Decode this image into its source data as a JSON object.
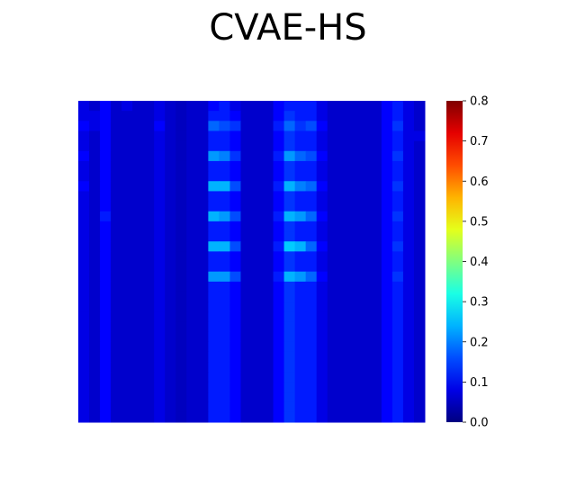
{
  "chart_data": {
    "type": "heatmap",
    "title": "CVAE-HS",
    "xlabel": "",
    "ylabel": "",
    "grid": false,
    "axes_visible": false,
    "colormap": "jet",
    "colorbar": {
      "range": [
        0.0,
        0.8
      ],
      "ticks": [
        0.0,
        0.1,
        0.2,
        0.3,
        0.4,
        0.5,
        0.6,
        0.7,
        0.8
      ],
      "tick_labels": [
        "0.0",
        "0.1",
        "0.2",
        "0.3",
        "0.4",
        "0.5",
        "0.6",
        "0.7",
        "0.8"
      ],
      "placement": "right"
    },
    "grid_size": [
      32,
      32
    ],
    "values": [
      [
        0.08,
        0.06,
        0.1,
        0.06,
        0.08,
        0.06,
        0.06,
        0.08,
        0.06,
        0.05,
        0.06,
        0.06,
        0.1,
        0.12,
        0.08,
        0.06,
        0.06,
        0.06,
        0.1,
        0.12,
        0.12,
        0.12,
        0.08,
        0.06,
        0.06,
        0.06,
        0.06,
        0.06,
        0.1,
        0.12,
        0.08,
        0.06
      ],
      [
        0.08,
        0.08,
        0.1,
        0.06,
        0.06,
        0.06,
        0.06,
        0.08,
        0.06,
        0.05,
        0.06,
        0.06,
        0.12,
        0.12,
        0.1,
        0.06,
        0.06,
        0.06,
        0.1,
        0.14,
        0.12,
        0.12,
        0.08,
        0.06,
        0.06,
        0.06,
        0.06,
        0.06,
        0.1,
        0.12,
        0.08,
        0.06
      ],
      [
        0.1,
        0.08,
        0.1,
        0.06,
        0.06,
        0.06,
        0.06,
        0.1,
        0.06,
        0.05,
        0.06,
        0.06,
        0.18,
        0.16,
        0.14,
        0.06,
        0.06,
        0.06,
        0.12,
        0.18,
        0.14,
        0.16,
        0.1,
        0.06,
        0.06,
        0.06,
        0.06,
        0.06,
        0.1,
        0.14,
        0.08,
        0.06
      ],
      [
        0.08,
        0.06,
        0.1,
        0.06,
        0.06,
        0.06,
        0.06,
        0.08,
        0.06,
        0.05,
        0.06,
        0.06,
        0.12,
        0.12,
        0.1,
        0.06,
        0.06,
        0.06,
        0.1,
        0.14,
        0.12,
        0.12,
        0.08,
        0.06,
        0.06,
        0.06,
        0.06,
        0.06,
        0.1,
        0.12,
        0.08,
        0.08
      ],
      [
        0.08,
        0.06,
        0.1,
        0.06,
        0.06,
        0.06,
        0.06,
        0.08,
        0.06,
        0.05,
        0.06,
        0.06,
        0.12,
        0.12,
        0.1,
        0.06,
        0.06,
        0.06,
        0.1,
        0.14,
        0.12,
        0.12,
        0.08,
        0.06,
        0.06,
        0.06,
        0.06,
        0.06,
        0.1,
        0.12,
        0.08,
        0.06
      ],
      [
        0.1,
        0.06,
        0.1,
        0.06,
        0.06,
        0.06,
        0.06,
        0.08,
        0.06,
        0.05,
        0.06,
        0.06,
        0.22,
        0.2,
        0.14,
        0.06,
        0.06,
        0.06,
        0.12,
        0.22,
        0.18,
        0.16,
        0.1,
        0.06,
        0.06,
        0.06,
        0.06,
        0.06,
        0.1,
        0.14,
        0.08,
        0.06
      ],
      [
        0.08,
        0.06,
        0.1,
        0.06,
        0.06,
        0.06,
        0.06,
        0.08,
        0.06,
        0.05,
        0.06,
        0.06,
        0.12,
        0.12,
        0.1,
        0.06,
        0.06,
        0.06,
        0.1,
        0.14,
        0.12,
        0.12,
        0.08,
        0.06,
        0.06,
        0.06,
        0.06,
        0.06,
        0.1,
        0.12,
        0.08,
        0.06
      ],
      [
        0.08,
        0.06,
        0.1,
        0.06,
        0.06,
        0.06,
        0.06,
        0.08,
        0.06,
        0.05,
        0.06,
        0.06,
        0.12,
        0.12,
        0.1,
        0.06,
        0.06,
        0.06,
        0.1,
        0.14,
        0.12,
        0.12,
        0.08,
        0.06,
        0.06,
        0.06,
        0.06,
        0.06,
        0.1,
        0.12,
        0.08,
        0.06
      ],
      [
        0.1,
        0.06,
        0.1,
        0.06,
        0.06,
        0.06,
        0.06,
        0.08,
        0.06,
        0.05,
        0.06,
        0.06,
        0.24,
        0.24,
        0.16,
        0.06,
        0.06,
        0.06,
        0.12,
        0.24,
        0.2,
        0.18,
        0.1,
        0.06,
        0.06,
        0.06,
        0.06,
        0.06,
        0.1,
        0.14,
        0.08,
        0.06
      ],
      [
        0.08,
        0.06,
        0.1,
        0.06,
        0.06,
        0.06,
        0.06,
        0.08,
        0.06,
        0.05,
        0.06,
        0.06,
        0.12,
        0.12,
        0.1,
        0.06,
        0.06,
        0.06,
        0.1,
        0.14,
        0.12,
        0.12,
        0.08,
        0.06,
        0.06,
        0.06,
        0.06,
        0.06,
        0.1,
        0.12,
        0.08,
        0.06
      ],
      [
        0.08,
        0.06,
        0.1,
        0.06,
        0.06,
        0.06,
        0.06,
        0.08,
        0.06,
        0.05,
        0.06,
        0.06,
        0.12,
        0.12,
        0.1,
        0.06,
        0.06,
        0.06,
        0.1,
        0.14,
        0.12,
        0.12,
        0.08,
        0.06,
        0.06,
        0.06,
        0.06,
        0.06,
        0.1,
        0.12,
        0.08,
        0.06
      ],
      [
        0.08,
        0.06,
        0.12,
        0.06,
        0.06,
        0.06,
        0.06,
        0.08,
        0.06,
        0.05,
        0.06,
        0.06,
        0.24,
        0.22,
        0.16,
        0.06,
        0.06,
        0.06,
        0.12,
        0.24,
        0.22,
        0.18,
        0.1,
        0.06,
        0.06,
        0.06,
        0.06,
        0.06,
        0.1,
        0.14,
        0.08,
        0.06
      ],
      [
        0.08,
        0.06,
        0.1,
        0.06,
        0.06,
        0.06,
        0.06,
        0.08,
        0.06,
        0.05,
        0.06,
        0.06,
        0.12,
        0.12,
        0.1,
        0.06,
        0.06,
        0.06,
        0.1,
        0.14,
        0.12,
        0.12,
        0.08,
        0.06,
        0.06,
        0.06,
        0.06,
        0.06,
        0.1,
        0.12,
        0.08,
        0.06
      ],
      [
        0.08,
        0.06,
        0.1,
        0.06,
        0.06,
        0.06,
        0.06,
        0.08,
        0.06,
        0.05,
        0.06,
        0.06,
        0.12,
        0.12,
        0.1,
        0.06,
        0.06,
        0.06,
        0.1,
        0.14,
        0.12,
        0.12,
        0.08,
        0.06,
        0.06,
        0.06,
        0.06,
        0.06,
        0.1,
        0.12,
        0.08,
        0.06
      ],
      [
        0.08,
        0.06,
        0.1,
        0.06,
        0.06,
        0.06,
        0.06,
        0.08,
        0.06,
        0.05,
        0.06,
        0.06,
        0.24,
        0.24,
        0.16,
        0.06,
        0.06,
        0.06,
        0.12,
        0.26,
        0.24,
        0.18,
        0.1,
        0.06,
        0.06,
        0.06,
        0.06,
        0.06,
        0.1,
        0.14,
        0.08,
        0.06
      ],
      [
        0.08,
        0.06,
        0.1,
        0.06,
        0.06,
        0.06,
        0.06,
        0.08,
        0.06,
        0.05,
        0.06,
        0.06,
        0.12,
        0.12,
        0.1,
        0.06,
        0.06,
        0.06,
        0.1,
        0.14,
        0.12,
        0.12,
        0.08,
        0.06,
        0.06,
        0.06,
        0.06,
        0.06,
        0.1,
        0.12,
        0.08,
        0.06
      ],
      [
        0.08,
        0.06,
        0.1,
        0.06,
        0.06,
        0.06,
        0.06,
        0.08,
        0.06,
        0.05,
        0.06,
        0.06,
        0.12,
        0.12,
        0.1,
        0.06,
        0.06,
        0.06,
        0.1,
        0.14,
        0.12,
        0.12,
        0.08,
        0.06,
        0.06,
        0.06,
        0.06,
        0.06,
        0.1,
        0.12,
        0.08,
        0.06
      ],
      [
        0.08,
        0.06,
        0.1,
        0.06,
        0.06,
        0.06,
        0.06,
        0.08,
        0.06,
        0.05,
        0.06,
        0.06,
        0.22,
        0.22,
        0.16,
        0.06,
        0.06,
        0.06,
        0.12,
        0.24,
        0.22,
        0.18,
        0.1,
        0.06,
        0.06,
        0.06,
        0.06,
        0.06,
        0.1,
        0.14,
        0.08,
        0.06
      ],
      [
        0.08,
        0.06,
        0.1,
        0.06,
        0.06,
        0.06,
        0.06,
        0.08,
        0.06,
        0.05,
        0.06,
        0.06,
        0.12,
        0.12,
        0.1,
        0.06,
        0.06,
        0.06,
        0.1,
        0.14,
        0.12,
        0.12,
        0.08,
        0.06,
        0.06,
        0.06,
        0.06,
        0.06,
        0.1,
        0.12,
        0.08,
        0.06
      ],
      [
        0.08,
        0.06,
        0.1,
        0.06,
        0.06,
        0.06,
        0.06,
        0.08,
        0.06,
        0.05,
        0.06,
        0.06,
        0.12,
        0.12,
        0.1,
        0.06,
        0.06,
        0.06,
        0.1,
        0.14,
        0.12,
        0.12,
        0.08,
        0.06,
        0.06,
        0.06,
        0.06,
        0.06,
        0.1,
        0.12,
        0.08,
        0.06
      ],
      [
        0.08,
        0.06,
        0.1,
        0.06,
        0.06,
        0.06,
        0.06,
        0.08,
        0.06,
        0.05,
        0.06,
        0.06,
        0.12,
        0.12,
        0.1,
        0.06,
        0.06,
        0.06,
        0.1,
        0.14,
        0.12,
        0.12,
        0.08,
        0.06,
        0.06,
        0.06,
        0.06,
        0.06,
        0.1,
        0.12,
        0.08,
        0.06
      ],
      [
        0.08,
        0.06,
        0.1,
        0.06,
        0.06,
        0.06,
        0.06,
        0.08,
        0.06,
        0.05,
        0.06,
        0.06,
        0.12,
        0.12,
        0.1,
        0.06,
        0.06,
        0.06,
        0.1,
        0.14,
        0.12,
        0.12,
        0.08,
        0.06,
        0.06,
        0.06,
        0.06,
        0.06,
        0.1,
        0.12,
        0.08,
        0.06
      ],
      [
        0.08,
        0.06,
        0.1,
        0.06,
        0.06,
        0.06,
        0.06,
        0.08,
        0.06,
        0.05,
        0.06,
        0.06,
        0.12,
        0.12,
        0.1,
        0.06,
        0.06,
        0.06,
        0.1,
        0.14,
        0.12,
        0.12,
        0.08,
        0.06,
        0.06,
        0.06,
        0.06,
        0.06,
        0.1,
        0.12,
        0.08,
        0.06
      ],
      [
        0.08,
        0.06,
        0.1,
        0.06,
        0.06,
        0.06,
        0.06,
        0.08,
        0.06,
        0.05,
        0.06,
        0.06,
        0.12,
        0.12,
        0.1,
        0.06,
        0.06,
        0.06,
        0.1,
        0.14,
        0.12,
        0.12,
        0.08,
        0.06,
        0.06,
        0.06,
        0.06,
        0.06,
        0.1,
        0.12,
        0.08,
        0.06
      ],
      [
        0.08,
        0.06,
        0.1,
        0.06,
        0.06,
        0.06,
        0.06,
        0.08,
        0.06,
        0.05,
        0.06,
        0.06,
        0.12,
        0.12,
        0.1,
        0.06,
        0.06,
        0.06,
        0.1,
        0.14,
        0.12,
        0.12,
        0.08,
        0.06,
        0.06,
        0.06,
        0.06,
        0.06,
        0.1,
        0.12,
        0.08,
        0.06
      ],
      [
        0.08,
        0.06,
        0.1,
        0.06,
        0.06,
        0.06,
        0.06,
        0.08,
        0.06,
        0.05,
        0.06,
        0.06,
        0.12,
        0.12,
        0.1,
        0.06,
        0.06,
        0.06,
        0.1,
        0.14,
        0.12,
        0.12,
        0.08,
        0.06,
        0.06,
        0.06,
        0.06,
        0.06,
        0.1,
        0.12,
        0.08,
        0.06
      ],
      [
        0.08,
        0.06,
        0.1,
        0.06,
        0.06,
        0.06,
        0.06,
        0.08,
        0.06,
        0.05,
        0.06,
        0.06,
        0.12,
        0.12,
        0.1,
        0.06,
        0.06,
        0.06,
        0.1,
        0.14,
        0.12,
        0.12,
        0.08,
        0.06,
        0.06,
        0.06,
        0.06,
        0.06,
        0.1,
        0.12,
        0.08,
        0.06
      ],
      [
        0.08,
        0.06,
        0.1,
        0.06,
        0.06,
        0.06,
        0.06,
        0.08,
        0.06,
        0.05,
        0.06,
        0.06,
        0.12,
        0.12,
        0.1,
        0.06,
        0.06,
        0.06,
        0.1,
        0.14,
        0.12,
        0.12,
        0.08,
        0.06,
        0.06,
        0.06,
        0.06,
        0.06,
        0.1,
        0.12,
        0.08,
        0.06
      ],
      [
        0.08,
        0.06,
        0.1,
        0.06,
        0.06,
        0.06,
        0.06,
        0.08,
        0.06,
        0.05,
        0.06,
        0.06,
        0.12,
        0.12,
        0.1,
        0.06,
        0.06,
        0.06,
        0.1,
        0.14,
        0.12,
        0.12,
        0.08,
        0.06,
        0.06,
        0.06,
        0.06,
        0.06,
        0.1,
        0.12,
        0.08,
        0.06
      ],
      [
        0.08,
        0.06,
        0.1,
        0.06,
        0.06,
        0.06,
        0.06,
        0.08,
        0.06,
        0.05,
        0.06,
        0.06,
        0.12,
        0.12,
        0.1,
        0.06,
        0.06,
        0.06,
        0.1,
        0.14,
        0.12,
        0.12,
        0.08,
        0.06,
        0.06,
        0.06,
        0.06,
        0.06,
        0.1,
        0.12,
        0.08,
        0.06
      ],
      [
        0.08,
        0.06,
        0.1,
        0.06,
        0.06,
        0.06,
        0.06,
        0.08,
        0.06,
        0.05,
        0.06,
        0.06,
        0.12,
        0.12,
        0.1,
        0.06,
        0.06,
        0.06,
        0.1,
        0.14,
        0.12,
        0.12,
        0.08,
        0.06,
        0.06,
        0.06,
        0.06,
        0.06,
        0.1,
        0.12,
        0.08,
        0.06
      ],
      [
        0.08,
        0.06,
        0.1,
        0.06,
        0.06,
        0.06,
        0.06,
        0.08,
        0.06,
        0.05,
        0.06,
        0.06,
        0.12,
        0.12,
        0.1,
        0.06,
        0.06,
        0.06,
        0.1,
        0.14,
        0.12,
        0.12,
        0.08,
        0.06,
        0.06,
        0.06,
        0.06,
        0.06,
        0.1,
        0.12,
        0.08,
        0.06
      ]
    ]
  }
}
